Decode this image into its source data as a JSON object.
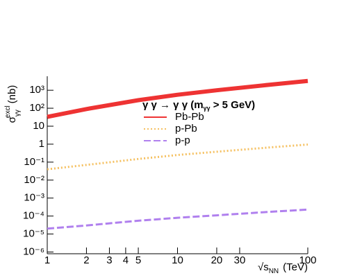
{
  "chart_data": {
    "type": "line",
    "y_label": {
      "symbol": "σ",
      "superscript": "excl",
      "subscript": "γγ",
      "unit": "(nb)"
    },
    "x_label": {
      "root": "√s",
      "subscript": "NN",
      "unit": "(TeV)"
    },
    "legend_title": {
      "before": "γ γ → γ γ (m",
      "subscript": "γγ",
      "after": " > 5 GeV)"
    },
    "x": [
      1,
      2,
      5,
      10,
      20,
      50,
      100
    ],
    "series": [
      {
        "name": "Pb-Pb",
        "color": "#ee3333",
        "style": "solid",
        "values": [
          33,
          90,
          280,
          560,
          1000,
          2000,
          3300
        ]
      },
      {
        "name": "p-Pb",
        "color": "#f5c060",
        "style": "dotted",
        "values": [
          0.04,
          0.07,
          0.15,
          0.25,
          0.38,
          0.65,
          0.95
        ]
      },
      {
        "name": "p-p",
        "color": "#b080ee",
        "style": "dashed",
        "values": [
          2e-05,
          3e-05,
          5.5e-05,
          8e-05,
          0.00011,
          0.00017,
          0.00023
        ]
      }
    ],
    "xlog": true,
    "ylog": true,
    "xlim": [
      1,
      100
    ],
    "ylim": [
      8e-07,
      6000
    ],
    "xticks": [
      1,
      2,
      3,
      4,
      5,
      10,
      20,
      30,
      100
    ],
    "yticks": [
      {
        "value": 1e-06,
        "label": "10⁻⁶"
      },
      {
        "value": 1e-05,
        "label": "10⁻⁵"
      },
      {
        "value": 0.0001,
        "label": "10⁻⁴"
      },
      {
        "value": 0.001,
        "label": "10⁻³"
      },
      {
        "value": 0.01,
        "label": "10⁻²"
      },
      {
        "value": 0.1,
        "label": "10⁻¹"
      },
      1,
      10,
      {
        "value": 100,
        "label": "10²"
      },
      {
        "value": 1000,
        "label": "10³"
      }
    ]
  }
}
